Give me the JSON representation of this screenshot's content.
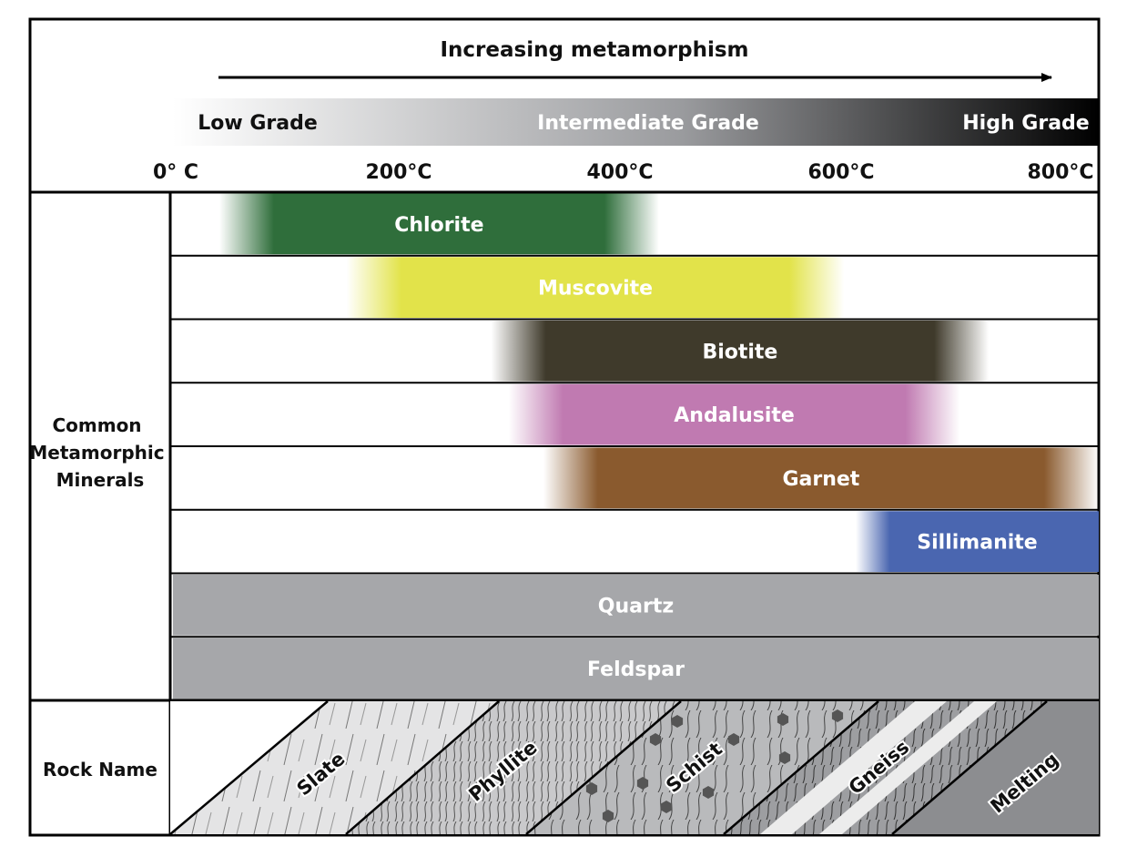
{
  "header": {
    "title": "Increasing metamorphism",
    "grades": {
      "low": "Low Grade",
      "intermediate": "Intermediate Grade",
      "high": "High Grade"
    },
    "temp_labels": [
      "0° C",
      "200°C",
      "400°C",
      "600°C",
      "800°C"
    ]
  },
  "rows": {
    "minerals_heading": [
      "Common",
      "Metamorphic",
      "Minerals"
    ],
    "rock_heading": "Rock Name"
  },
  "colors": {
    "chlorite": "#2f6e3b",
    "muscovite": "#e2e34a",
    "biotite": "#3f3a2b",
    "andalusite": "#c07ab1",
    "garnet": "#8a5a2e",
    "sillimanite": "#4a66b0",
    "quartz_feldspar": "#a6a7aa"
  },
  "chart_data": {
    "type": "range",
    "x_unit": "°C",
    "xlim": [
      0,
      800
    ],
    "minerals": [
      {
        "name": "Chlorite",
        "start": 40,
        "end": 420,
        "fade_start": true,
        "fade_end": true
      },
      {
        "name": "Muscovite",
        "start": 150,
        "end": 580,
        "fade_start": true,
        "fade_end": true
      },
      {
        "name": "Biotite",
        "start": 275,
        "end": 705,
        "fade_start": true,
        "fade_end": true
      },
      {
        "name": "Andalusite",
        "start": 290,
        "end": 680,
        "fade_start": true,
        "fade_end": true
      },
      {
        "name": "Garnet",
        "start": 320,
        "end": 800,
        "fade_start": true,
        "fade_end": true
      },
      {
        "name": "Sillimanite",
        "start": 590,
        "end": 800,
        "fade_start": true,
        "fade_end": false
      },
      {
        "name": "Quartz",
        "start": 0,
        "end": 800,
        "fade_start": false,
        "fade_end": false
      },
      {
        "name": "Feldspar",
        "start": 0,
        "end": 800,
        "fade_start": false,
        "fade_end": false
      }
    ],
    "rocks": [
      "Slate",
      "Phyllite",
      "Schist",
      "Gneiss",
      "Melting"
    ]
  }
}
